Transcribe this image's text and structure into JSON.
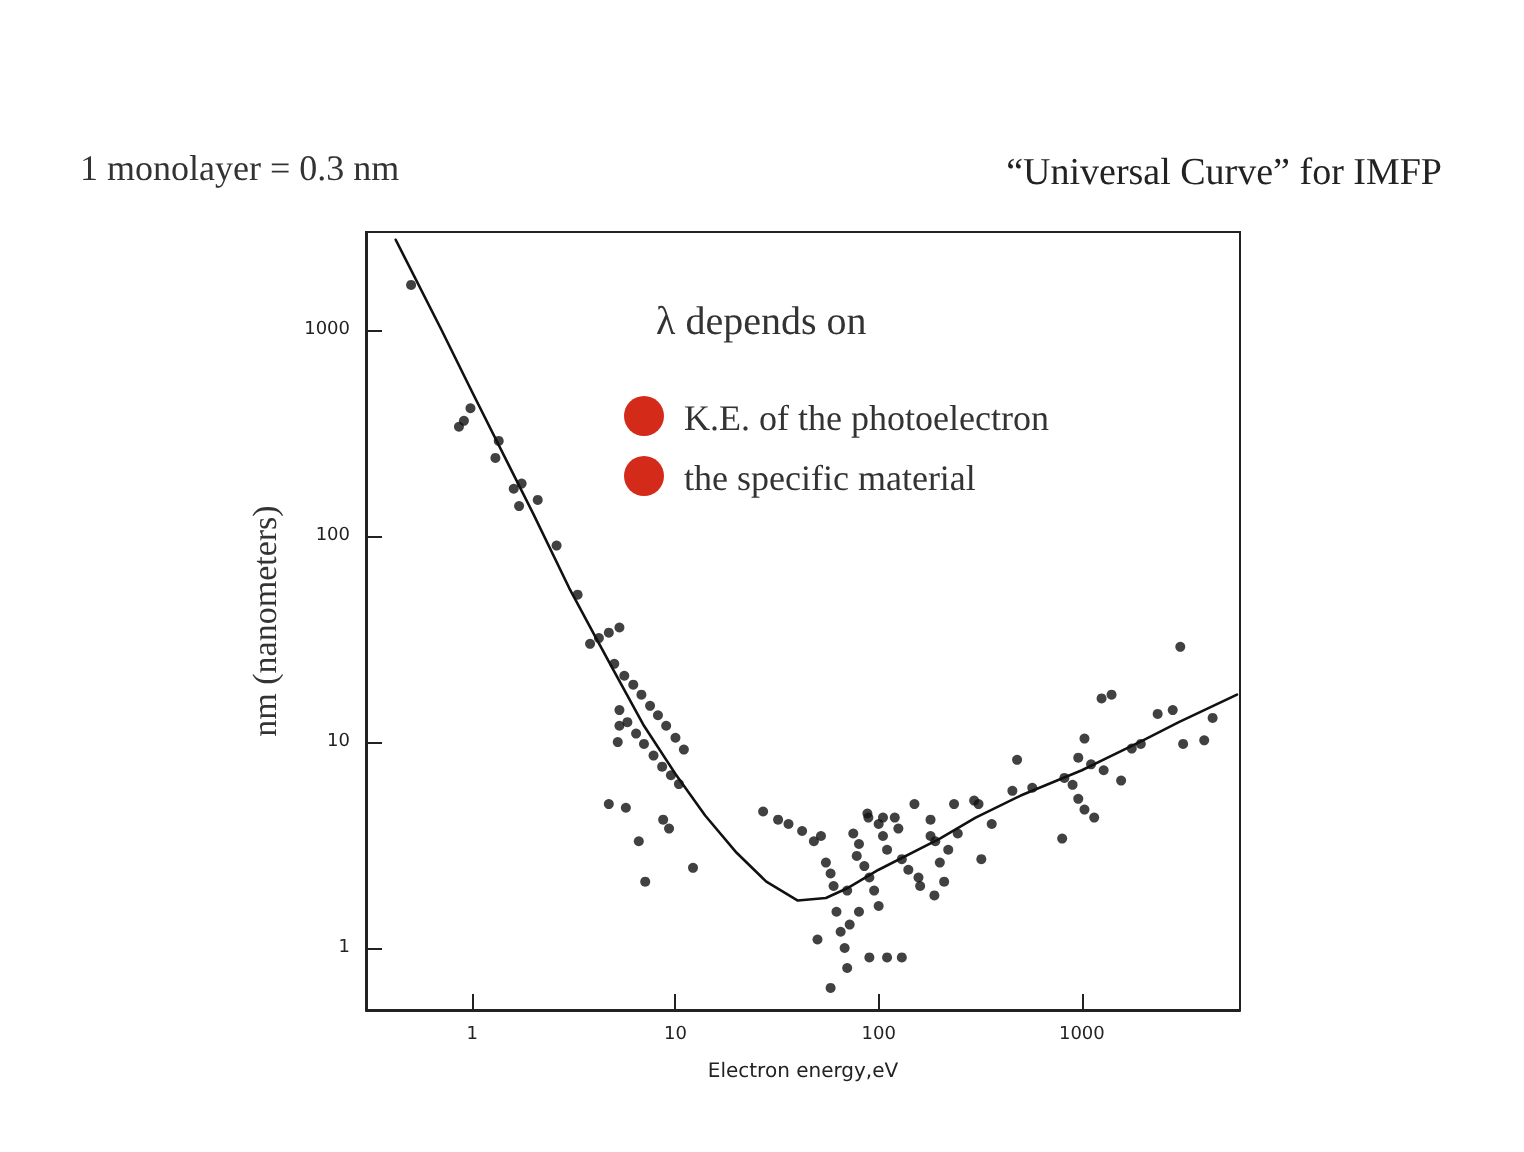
{
  "chart_data": {
    "type": "scatter",
    "title": "“Universal Curve” for IMFP",
    "xlabel": "Electron energy,eV",
    "ylabel": "nm (nanometers)",
    "annotations": [
      "1 monolayer = 0.3 nm",
      "λ depends on",
      "K.E. of the photoelectron",
      "the specific material"
    ],
    "log": "xy",
    "grid": false,
    "xlim": [
      0.3,
      6000
    ],
    "xticks": [
      1,
      10,
      100,
      1000
    ],
    "ylim": [
      0.5,
      3000
    ],
    "yticks": [
      1,
      10,
      100,
      1000
    ],
    "series": [
      {
        "marker": "circle",
        "color": "#111111",
        "x": [
          0.5,
          0.91,
          0.98,
          0.86,
          1.3,
          1.35,
          1.6,
          1.75,
          1.7,
          2.1,
          2.6,
          3.3,
          3.8,
          4.2,
          4.7,
          5.3,
          5.0,
          5.6,
          6.2,
          6.8,
          7.5,
          8.2,
          9.0,
          10.0,
          11.0,
          5.3,
          5.8,
          6.4,
          7.0,
          7.8,
          8.6,
          9.5,
          10.4,
          4.7,
          5.7,
          6.6,
          7.1,
          8.7,
          9.3,
          12.2,
          5.2,
          5.3,
          27,
          32,
          36,
          42,
          48,
          52,
          55,
          58,
          60,
          62,
          65,
          68,
          70,
          58,
          50,
          75,
          80,
          78,
          85,
          90,
          95,
          100,
          105,
          110,
          100,
          70,
          72,
          80,
          90,
          110,
          130,
          88,
          120,
          125,
          130,
          140,
          160,
          180,
          180,
          190,
          200,
          210,
          220,
          150,
          245,
          310,
          320,
          480,
          570,
          800,
          900,
          1030,
          1030,
          1150,
          1250,
          1400,
          1280,
          1560,
          1760,
          2360,
          2800,
          3050,
          3150,
          4000,
          4400,
          960,
          820,
          1110,
          960,
          235,
          360,
          89,
          105,
          157,
          188,
          295,
          455,
          1950
        ],
        "values": [
          1660,
          363,
          418,
          340,
          240,
          290,
          170,
          180,
          140,
          150,
          90,
          52,
          30,
          32,
          34,
          36,
          24,
          21,
          19,
          17,
          15,
          13.5,
          12,
          10.5,
          9.2,
          14.3,
          12.5,
          11,
          9.8,
          8.6,
          7.6,
          6.9,
          6.25,
          5,
          4.8,
          3.3,
          2.1,
          4.2,
          3.8,
          2.45,
          10,
          12,
          4.6,
          4.2,
          4,
          3.7,
          3.3,
          3.5,
          2.6,
          2.3,
          2,
          1.5,
          1.2,
          1,
          0.8,
          0.64,
          1.1,
          3.6,
          3.2,
          2.8,
          2.5,
          2.2,
          1.9,
          4,
          3.5,
          3,
          1.6,
          1.9,
          1.3,
          1.5,
          0.9,
          0.9,
          0.9,
          4.5,
          4.3,
          3.8,
          2.7,
          2.4,
          2,
          4.2,
          3.5,
          3.3,
          2.6,
          2.1,
          3,
          5,
          3.6,
          5,
          2.7,
          8.2,
          6,
          3.4,
          6.2,
          10.4,
          4.7,
          4.3,
          16.3,
          17,
          7.3,
          6.5,
          9.3,
          13.7,
          14.3,
          29,
          9.8,
          10.2,
          13.1,
          8.4,
          6.7,
          7.8,
          5.3,
          5,
          4,
          4.3,
          4.3,
          2.2,
          1.8,
          5.2,
          5.8,
          9.8
        ]
      },
      {
        "type": "line",
        "marker": "none",
        "color": "#111111",
        "x": [
          0.42,
          0.7,
          1,
          1.5,
          2,
          3,
          4,
          5,
          7,
          10,
          14,
          20,
          28,
          40,
          55,
          70,
          100,
          200,
          300,
          500,
          1000,
          2000,
          3000,
          5800
        ],
        "values": [
          2750,
          1020,
          500,
          225,
          128,
          56,
          33,
          22,
          12,
          7,
          4.4,
          2.9,
          2.1,
          1.7,
          1.75,
          1.95,
          2.4,
          3.4,
          4.3,
          5.5,
          7.3,
          10.2,
          12.5,
          17
        ]
      }
    ]
  }
}
